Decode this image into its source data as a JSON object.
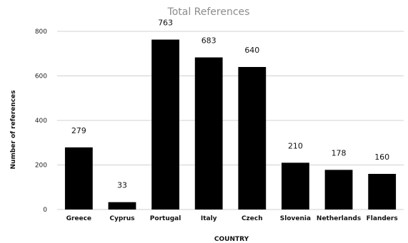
{
  "chart_data": {
    "type": "bar",
    "title": "Total References",
    "xlabel": "COUNTRY",
    "ylabel": "Number of references",
    "categories": [
      "Greece",
      "Cyprus",
      "Portugal",
      "Italy",
      "Czech",
      "Slovenia",
      "Netherlands",
      "Flanders"
    ],
    "values": [
      279,
      33,
      763,
      683,
      640,
      210,
      178,
      160
    ],
    "ylim": [
      0,
      800
    ],
    "yticks": [
      0,
      200,
      400,
      600,
      800
    ],
    "grid": true,
    "legend": "none",
    "bar_color": "#000000"
  }
}
